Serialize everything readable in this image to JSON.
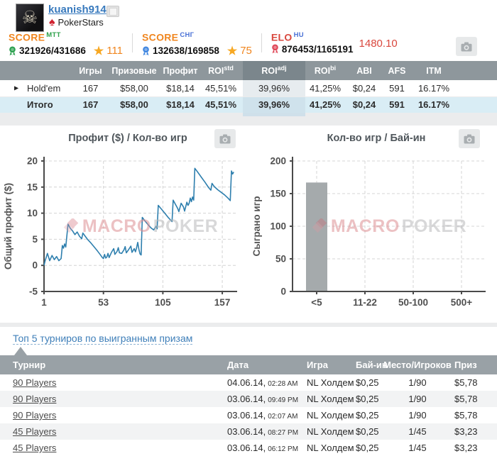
{
  "icons": {
    "skull": "☠",
    "spade": "♠",
    "star": "★",
    "expander": "▶"
  },
  "profile": {
    "username": "kuanish914",
    "site": "PokerStars",
    "score_mtt": {
      "label": "SCORE",
      "sup": "MTT",
      "value": "321926/431686",
      "star": "111"
    },
    "score_sng": {
      "label": "SCORE",
      "sup": "СНГ",
      "value": "132638/169858",
      "star": "75"
    },
    "elo": {
      "label": "ELO",
      "sup": "HU",
      "value": "876453/1165191",
      "rating": "1480.10"
    }
  },
  "stats_table": {
    "columns": [
      {
        "label": ""
      },
      {
        "label": "Игры"
      },
      {
        "label": "Призовые"
      },
      {
        "label": "Профит",
        "green": true
      },
      {
        "label": "ROI",
        "sup": "std",
        "green": true
      },
      {
        "label": "ROI",
        "sup": "adj",
        "green": true,
        "highlight": true
      },
      {
        "label": "ROI",
        "sup": "bi",
        "green": true
      },
      {
        "label": "ABI"
      },
      {
        "label": "AFS"
      },
      {
        "label": "ITM"
      }
    ],
    "rows": [
      {
        "name": "Hold'em",
        "expandable": true,
        "total": false,
        "cells": [
          "167",
          "$58,00",
          "$18,14",
          "45,51%",
          "39,96%",
          "41,25%",
          "$0,24",
          "591",
          "16.17%"
        ]
      },
      {
        "name": "Итого",
        "expandable": false,
        "total": true,
        "cells": [
          "167",
          "$58,00",
          "$18,14",
          "45,51%",
          "39,96%",
          "41,25%",
          "$0,24",
          "591",
          "16.17%"
        ]
      }
    ]
  },
  "watermark": {
    "brand_left": "MACRO",
    "brand_right": "POKER"
  },
  "chart_data": [
    {
      "type": "line",
      "title": "Профит ($) / Кол-во игр",
      "ylabel": "Общий профит ($)",
      "xlim": [
        1,
        170
      ],
      "ylim": [
        -5,
        20
      ],
      "yticks": [
        -5,
        0,
        5,
        10,
        15,
        20
      ],
      "xticks": [
        1,
        53,
        105,
        157
      ],
      "grid": true,
      "line_color": "#2e7fae",
      "series": [
        {
          "name": "Общий профит ($)",
          "points": [
            [
              1,
              0
            ],
            [
              2,
              0.9
            ],
            [
              4,
              2.3
            ],
            [
              6,
              0.9
            ],
            [
              8,
              1.9
            ],
            [
              10,
              1.1
            ],
            [
              12,
              1.7
            ],
            [
              14,
              0.9
            ],
            [
              16,
              1.3
            ],
            [
              17,
              3.8
            ],
            [
              18,
              3.3
            ],
            [
              19,
              4.1
            ],
            [
              20,
              3.5
            ],
            [
              22,
              7.9
            ],
            [
              24,
              7.1
            ],
            [
              26,
              6.6
            ],
            [
              28,
              5.9
            ],
            [
              30,
              6.4
            ],
            [
              32,
              5.6
            ],
            [
              34,
              5.1
            ],
            [
              35,
              6.2
            ],
            [
              37,
              5.6
            ],
            [
              39,
              5.0
            ],
            [
              42,
              4.3
            ],
            [
              45,
              3.5
            ],
            [
              48,
              2.7
            ],
            [
              50,
              2.1
            ],
            [
              52,
              1.5
            ],
            [
              53,
              1.3
            ],
            [
              54,
              2.1
            ],
            [
              55,
              1.4
            ],
            [
              56,
              1.6
            ],
            [
              57,
              2.3
            ],
            [
              58,
              1.5
            ],
            [
              60,
              2.5
            ],
            [
              62,
              3.2
            ],
            [
              63,
              2.1
            ],
            [
              65,
              2.7
            ],
            [
              66,
              3.4
            ],
            [
              67,
              2.4
            ],
            [
              69,
              2.3
            ],
            [
              71,
              3.0
            ],
            [
              72,
              3.6
            ],
            [
              73,
              2.4
            ],
            [
              75,
              3.0
            ],
            [
              77,
              3.7
            ],
            [
              78,
              2.5
            ],
            [
              80,
              3.2
            ],
            [
              81,
              2.6
            ],
            [
              82,
              3.4
            ],
            [
              83,
              4.4
            ],
            [
              84,
              3.1
            ],
            [
              85,
              2.2
            ],
            [
              86,
              2.0
            ],
            [
              87,
              9.2
            ],
            [
              89,
              8.6
            ],
            [
              92,
              7.8
            ],
            [
              95,
              7.1
            ],
            [
              97,
              6.8
            ],
            [
              99,
              7.5
            ],
            [
              100,
              7.0
            ],
            [
              101,
              11.5
            ],
            [
              104,
              10.7
            ],
            [
              107,
              9.9
            ],
            [
              110,
              9.1
            ],
            [
              113,
              8.4
            ],
            [
              114,
              12.5
            ],
            [
              116,
              11.7
            ],
            [
              118,
              10.9
            ],
            [
              119,
              10.3
            ],
            [
              121,
              11.9
            ],
            [
              123,
              11.2
            ],
            [
              124,
              10.4
            ],
            [
              126,
              12.1
            ],
            [
              127,
              11.5
            ],
            [
              128,
              11.9
            ],
            [
              129,
              12.9
            ],
            [
              130,
              12.2
            ],
            [
              131,
              13.1
            ],
            [
              132,
              12.5
            ],
            [
              133,
              18.6
            ],
            [
              136,
              17.7
            ],
            [
              139,
              16.8
            ],
            [
              142,
              15.9
            ],
            [
              145,
              14.9
            ],
            [
              147,
              14.4
            ],
            [
              148,
              15.7
            ],
            [
              150,
              15.1
            ],
            [
              153,
              14.5
            ],
            [
              156,
              14.0
            ],
            [
              159,
              13.5
            ],
            [
              162,
              12.9
            ],
            [
              164,
              12.4
            ],
            [
              165,
              18.1
            ],
            [
              166,
              17.5
            ],
            [
              167,
              17.9
            ]
          ]
        }
      ]
    },
    {
      "type": "bar",
      "title": "Кол-во игр / Бай-ин",
      "ylabel": "Сыграно игр",
      "categories": [
        "<5",
        "11-22",
        "50-100",
        "500+"
      ],
      "values": [
        167,
        0,
        0,
        0
      ],
      "ylim": [
        0,
        200
      ],
      "yticks": [
        0,
        50,
        100,
        150,
        200
      ],
      "grid": true,
      "bar_color": "#a5aaac"
    }
  ],
  "top5": {
    "link": "Топ 5 турниров по выигранным призам",
    "columns": [
      "Турнир",
      "Дата",
      "Игра",
      "Бай-ин",
      "Место/Игроков",
      "Приз"
    ],
    "rows": [
      {
        "name": "90 Players",
        "date": "04.06.14,",
        "time": "02:28 AM",
        "game": "NL Холдем",
        "buyin": "$0,25",
        "place": "1/90",
        "prize": "$5,78"
      },
      {
        "name": "90 Players",
        "date": "03.06.14,",
        "time": "09:49 PM",
        "game": "NL Холдем",
        "buyin": "$0,25",
        "place": "1/90",
        "prize": "$5,78"
      },
      {
        "name": "90 Players",
        "date": "03.06.14,",
        "time": "02:07 AM",
        "game": "NL Холдем",
        "buyin": "$0,25",
        "place": "1/90",
        "prize": "$5,78"
      },
      {
        "name": "45 Players",
        "date": "03.06.14,",
        "time": "08:27 PM",
        "game": "NL Холдем",
        "buyin": "$0,25",
        "place": "1/45",
        "prize": "$3,23"
      },
      {
        "name": "45 Players",
        "date": "03.06.14,",
        "time": "06:12 PM",
        "game": "NL Холдем",
        "buyin": "$0,25",
        "place": "1/45",
        "prize": "$3,23"
      }
    ]
  }
}
